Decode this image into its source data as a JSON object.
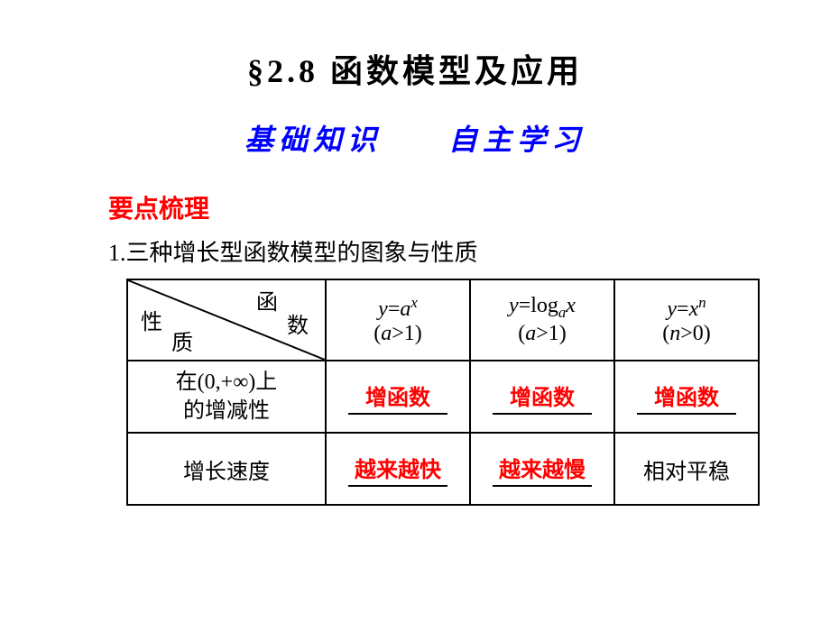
{
  "colors": {
    "red": "#ff0000",
    "blue": "#0000ff",
    "black": "#000000",
    "bg": "#ffffff"
  },
  "title": "§2.8  函数模型及应用",
  "subtitle_part1": "基础知识",
  "subtitle_part2": "自主学习",
  "section_heading": "要点梳理",
  "list_item_1": "1.三种增长型函数模型的图象与性质",
  "table": {
    "header_corner": {
      "top": "函",
      "mid": "数",
      "left": "性",
      "bottom": "质"
    },
    "col_headers": {
      "c1_line1_html": "<span class='math'>y</span><span class='up'>=</span><span class='math'>a</span><span class='sup'>x</span>",
      "c1_line2_html": "<span class='up'>(</span><span class='math'>a</span><span class='up'>&gt;1)</span>",
      "c2_line1_html": "<span class='math'>y</span><span class='up'>=log</span><span class='sub'>a</span><span class='math'>x</span>",
      "c2_line2_html": "<span class='up'>(</span><span class='math'>a</span><span class='up'>&gt;1)</span>",
      "c3_line1_html": "<span class='math'>y</span><span class='up'>=</span><span class='math'>x</span><span class='sup'>n</span>",
      "c3_line2_html": "<span class='up'>(</span><span class='math'>n</span><span class='up'>&gt;0)</span>"
    },
    "rows": [
      {
        "label_line1": "在(0,+∞)上",
        "label_line2": "的增减性",
        "c1": "增函数",
        "c1_red": true,
        "c1_underline": true,
        "c2": "增函数",
        "c2_red": true,
        "c2_underline": true,
        "c3": "增函数",
        "c3_red": true,
        "c3_underline": true
      },
      {
        "label": "增长速度",
        "c1": "越来越快",
        "c1_red": true,
        "c1_underline": true,
        "c2": "越来越慢",
        "c2_red": true,
        "c2_underline": true,
        "c3": "相对平稳",
        "c3_red": false,
        "c3_underline": false
      }
    ]
  },
  "fonts": {
    "title_size_pt": 27,
    "subtitle_size_pt": 24,
    "body_size_pt": 20,
    "title_family": "SimSun",
    "subtitle_family": "KaiTi"
  }
}
